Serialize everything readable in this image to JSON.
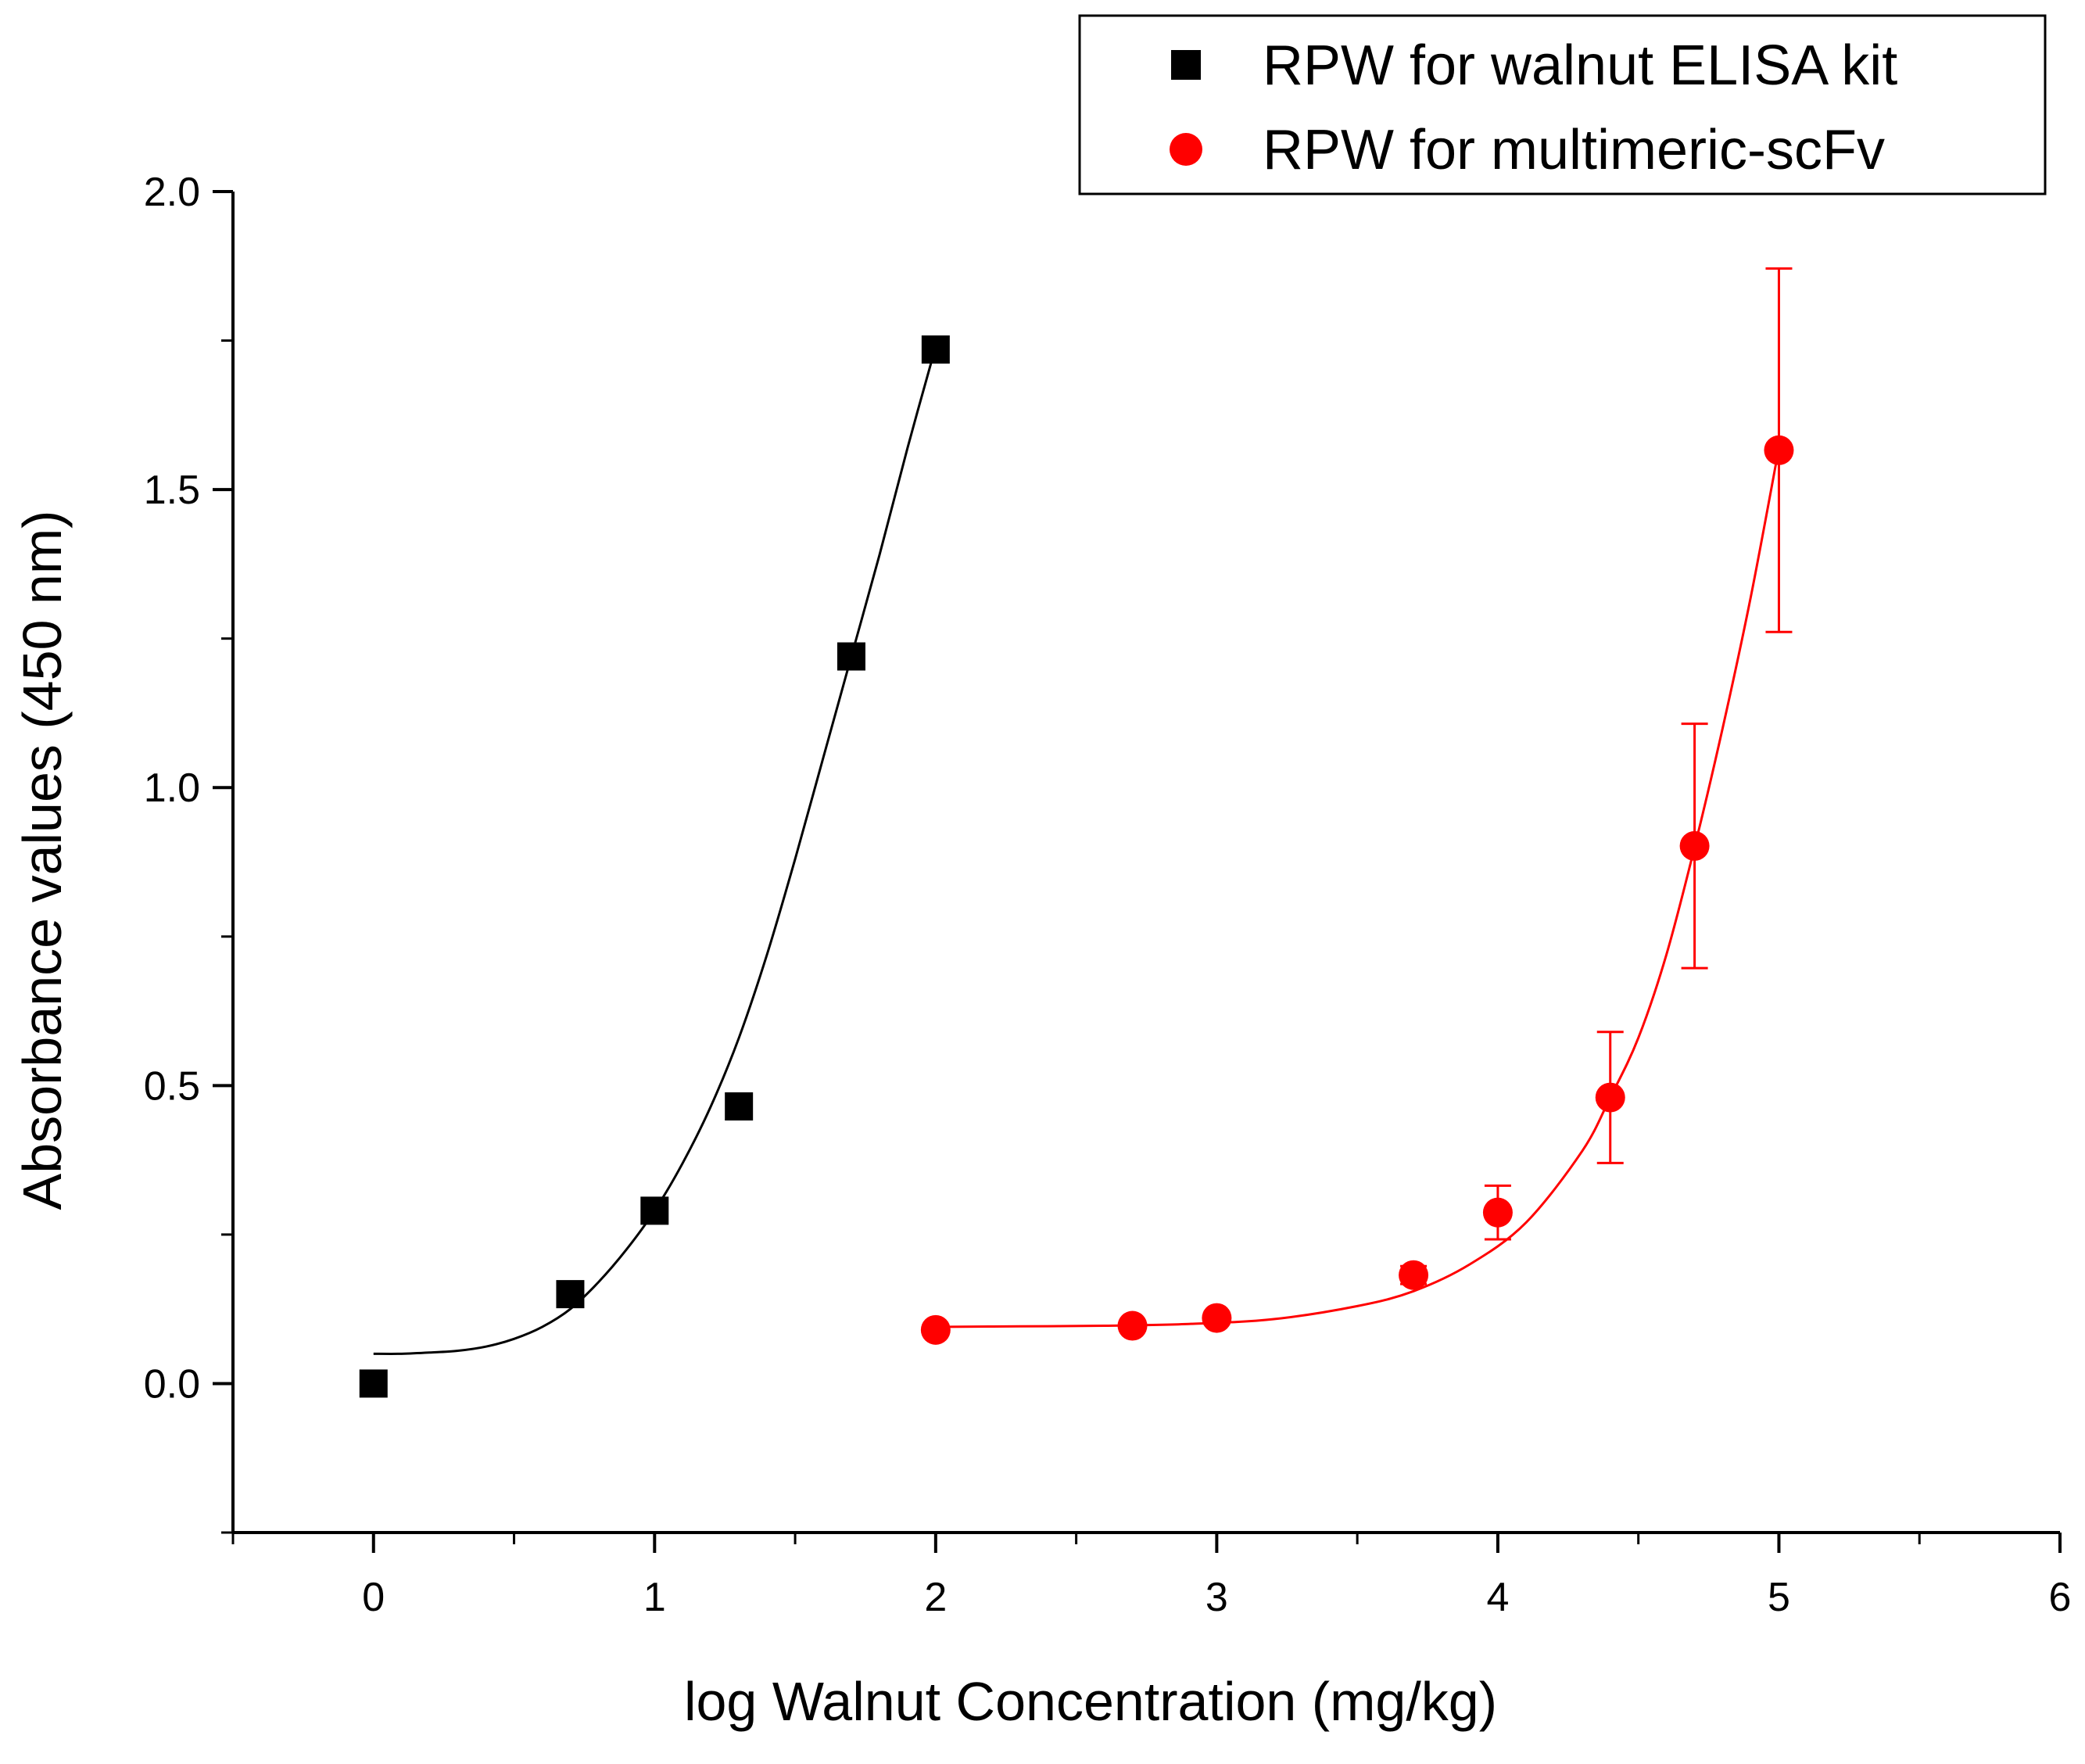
{
  "chart_data": {
    "type": "scatter",
    "title": "",
    "xlabel": "log Walnut Concentration (mg/kg)",
    "ylabel": "Absorbance values (450 nm)",
    "xlim": [
      -0.5,
      6
    ],
    "ylim": [
      -0.25,
      2.0
    ],
    "x_ticks": [
      0,
      1,
      2,
      3,
      4,
      5,
      6
    ],
    "x_tick_labels": [
      "0",
      "1",
      "2",
      "3",
      "4",
      "5",
      "6"
    ],
    "y_ticks": [
      0.0,
      0.5,
      1.0,
      1.5,
      2.0
    ],
    "y_tick_labels": [
      "0.0",
      "0.5",
      "1.0",
      "1.5",
      "2.0"
    ],
    "grid": false,
    "legend_position": "top-right",
    "series": [
      {
        "name": "RPW for walnut ELISA kit",
        "marker": "square",
        "color": "#000000",
        "x": [
          0,
          0.7,
          1.0,
          1.3,
          1.7,
          2.0
        ],
        "y": [
          0.0,
          0.15,
          0.29,
          0.465,
          1.22,
          1.735
        ],
        "err": [
          0.0,
          0.01,
          0.01,
          0.01,
          0.01,
          0.01
        ],
        "fit_curve": {
          "x": [
            0,
            0.1,
            0.2,
            0.3,
            0.4,
            0.5,
            0.6,
            0.7,
            0.8,
            0.9,
            1.0,
            1.1,
            1.2,
            1.3,
            1.4,
            1.5,
            1.6,
            1.7,
            1.8,
            1.9,
            2.0
          ],
          "y": [
            0.05,
            0.05,
            0.052,
            0.055,
            0.062,
            0.075,
            0.095,
            0.125,
            0.17,
            0.225,
            0.29,
            0.37,
            0.465,
            0.58,
            0.72,
            0.88,
            1.05,
            1.22,
            1.39,
            1.57,
            1.74
          ]
        }
      },
      {
        "name": "RPW for multimeric-scFv",
        "marker": "circle",
        "color": "#ff0000",
        "x": [
          2.0,
          2.7,
          3.0,
          3.7,
          4.0,
          4.4,
          4.7,
          5.0
        ],
        "y": [
          0.09,
          0.097,
          0.11,
          0.182,
          0.287,
          0.48,
          0.902,
          1.566
        ],
        "err": [
          0.005,
          0.005,
          0.01,
          0.015,
          0.045,
          0.11,
          0.205,
          0.305
        ],
        "fit_curve": {
          "x": [
            2.0,
            2.3,
            2.6,
            2.9,
            3.2,
            3.5,
            3.7,
            3.9,
            4.1,
            4.3,
            4.4,
            4.5,
            4.6,
            4.7,
            4.8,
            4.9,
            5.0
          ],
          "y": [
            0.095,
            0.096,
            0.097,
            0.1,
            0.108,
            0.13,
            0.155,
            0.2,
            0.27,
            0.39,
            0.48,
            0.58,
            0.72,
            0.9,
            1.1,
            1.32,
            1.57
          ]
        }
      }
    ]
  }
}
